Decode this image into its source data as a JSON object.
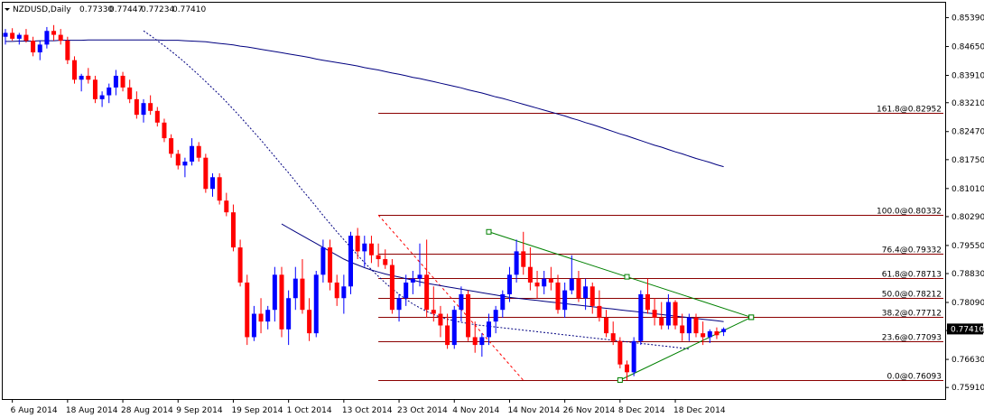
{
  "chart_data": {
    "type": "candlestick",
    "symbol_label": "NZDUSD,Daily",
    "ohlc_header": [
      "0.77330",
      "0.77447",
      "0.77234",
      "0.77410"
    ],
    "current_price_label": "0.77410",
    "ylim": [
      0.7566,
      0.8575
    ],
    "y_ticks": [
      "0.85390",
      "0.84650",
      "0.83910",
      "0.83210",
      "0.82470",
      "0.81750",
      "0.81010",
      "0.80290",
      "0.79550",
      "0.78830",
      "0.78090",
      "0.77370",
      "0.76630",
      "0.75910"
    ],
    "x_ticks": [
      {
        "i": 1,
        "label": "6 Aug 2014"
      },
      {
        "i": 9,
        "label": "18 Aug 2014"
      },
      {
        "i": 17,
        "label": "28 Aug 2014"
      },
      {
        "i": 25,
        "label": "9 Sep 2014"
      },
      {
        "i": 33,
        "label": "19 Sep 2014"
      },
      {
        "i": 41,
        "label": "1 Oct 2014"
      },
      {
        "i": 49,
        "label": "13 Oct 2014"
      },
      {
        "i": 57,
        "label": "23 Oct 2014"
      },
      {
        "i": 65,
        "label": "4 Nov 2014"
      },
      {
        "i": 73,
        "label": "14 Nov 2014"
      },
      {
        "i": 81,
        "label": "26 Nov 2014"
      },
      {
        "i": 89,
        "label": "8 Dec 2014"
      },
      {
        "i": 97,
        "label": "18 Dec 2014"
      }
    ],
    "candles": [
      [
        0.849,
        0.851,
        0.847,
        0.85
      ],
      [
        0.85,
        0.8512,
        0.848,
        0.8485
      ],
      [
        0.8485,
        0.85,
        0.847,
        0.8495
      ],
      [
        0.8495,
        0.851,
        0.8475,
        0.848
      ],
      [
        0.848,
        0.849,
        0.844,
        0.845
      ],
      [
        0.845,
        0.848,
        0.843,
        0.847
      ],
      [
        0.847,
        0.8515,
        0.846,
        0.8505
      ],
      [
        0.8505,
        0.852,
        0.848,
        0.8495
      ],
      [
        0.8495,
        0.851,
        0.847,
        0.848
      ],
      [
        0.848,
        0.849,
        0.842,
        0.843
      ],
      [
        0.843,
        0.844,
        0.837,
        0.838
      ],
      [
        0.838,
        0.8395,
        0.835,
        0.839
      ],
      [
        0.839,
        0.841,
        0.837,
        0.838
      ],
      [
        0.838,
        0.839,
        0.832,
        0.833
      ],
      [
        0.833,
        0.835,
        0.831,
        0.834
      ],
      [
        0.834,
        0.837,
        0.832,
        0.836
      ],
      [
        0.836,
        0.8405,
        0.834,
        0.839
      ],
      [
        0.839,
        0.84,
        0.835,
        0.836
      ],
      [
        0.836,
        0.838,
        0.832,
        0.833
      ],
      [
        0.833,
        0.835,
        0.828,
        0.829
      ],
      [
        0.829,
        0.833,
        0.827,
        0.832
      ],
      [
        0.832,
        0.834,
        0.829,
        0.83
      ],
      [
        0.83,
        0.831,
        0.826,
        0.827
      ],
      [
        0.827,
        0.828,
        0.822,
        0.823
      ],
      [
        0.823,
        0.824,
        0.818,
        0.819
      ],
      [
        0.819,
        0.82,
        0.815,
        0.816
      ],
      [
        0.816,
        0.818,
        0.813,
        0.817
      ],
      [
        0.817,
        0.823,
        0.816,
        0.821
      ],
      [
        0.821,
        0.822,
        0.817,
        0.818
      ],
      [
        0.818,
        0.819,
        0.809,
        0.81
      ],
      [
        0.81,
        0.814,
        0.808,
        0.813
      ],
      [
        0.813,
        0.814,
        0.806,
        0.807
      ],
      [
        0.807,
        0.809,
        0.803,
        0.804
      ],
      [
        0.804,
        0.806,
        0.794,
        0.795
      ],
      [
        0.795,
        0.797,
        0.785,
        0.786
      ],
      [
        0.786,
        0.788,
        0.77,
        0.772
      ],
      [
        0.772,
        0.78,
        0.771,
        0.778
      ],
      [
        0.778,
        0.782,
        0.773,
        0.776
      ],
      [
        0.776,
        0.78,
        0.774,
        0.779
      ],
      [
        0.779,
        0.79,
        0.776,
        0.788
      ],
      [
        0.788,
        0.79,
        0.772,
        0.774
      ],
      [
        0.774,
        0.784,
        0.77,
        0.782
      ],
      [
        0.782,
        0.79,
        0.779,
        0.787
      ],
      [
        0.787,
        0.792,
        0.778,
        0.779
      ],
      [
        0.779,
        0.782,
        0.771,
        0.773
      ],
      [
        0.773,
        0.789,
        0.772,
        0.788
      ],
      [
        0.788,
        0.797,
        0.786,
        0.795
      ],
      [
        0.795,
        0.797,
        0.784,
        0.786
      ],
      [
        0.786,
        0.788,
        0.78,
        0.782
      ],
      [
        0.782,
        0.788,
        0.778,
        0.785
      ],
      [
        0.785,
        0.799,
        0.783,
        0.798
      ],
      [
        0.798,
        0.8,
        0.792,
        0.794
      ],
      [
        0.794,
        0.798,
        0.79,
        0.796
      ],
      [
        0.796,
        0.798,
        0.791,
        0.793
      ],
      [
        0.793,
        0.796,
        0.79,
        0.792
      ],
      [
        0.792,
        0.7945,
        0.7895,
        0.7905
      ],
      [
        0.7905,
        0.792,
        0.778,
        0.779
      ],
      [
        0.779,
        0.783,
        0.776,
        0.782
      ],
      [
        0.782,
        0.788,
        0.78,
        0.786
      ],
      [
        0.786,
        0.789,
        0.783,
        0.787
      ],
      [
        0.787,
        0.796,
        0.785,
        0.788
      ],
      [
        0.788,
        0.797,
        0.777,
        0.779
      ],
      [
        0.779,
        0.785,
        0.776,
        0.778
      ],
      [
        0.778,
        0.78,
        0.772,
        0.775
      ],
      [
        0.775,
        0.778,
        0.769,
        0.77
      ],
      [
        0.77,
        0.78,
        0.769,
        0.779
      ],
      [
        0.779,
        0.785,
        0.776,
        0.783
      ],
      [
        0.783,
        0.784,
        0.771,
        0.772
      ],
      [
        0.772,
        0.776,
        0.768,
        0.77
      ],
      [
        0.77,
        0.773,
        0.767,
        0.772
      ],
      [
        0.772,
        0.778,
        0.77,
        0.776
      ],
      [
        0.776,
        0.78,
        0.773,
        0.779
      ],
      [
        0.779,
        0.784,
        0.777,
        0.783
      ],
      [
        0.783,
        0.79,
        0.781,
        0.788
      ],
      [
        0.788,
        0.797,
        0.786,
        0.794
      ],
      [
        0.794,
        0.799,
        0.788,
        0.79
      ],
      [
        0.79,
        0.795,
        0.784,
        0.786
      ],
      [
        0.786,
        0.789,
        0.782,
        0.785
      ],
      [
        0.785,
        0.789,
        0.783,
        0.787
      ],
      [
        0.787,
        0.79,
        0.784,
        0.786
      ],
      [
        0.786,
        0.788,
        0.778,
        0.779
      ],
      [
        0.779,
        0.786,
        0.777,
        0.784
      ],
      [
        0.784,
        0.793,
        0.783,
        0.787
      ],
      [
        0.787,
        0.789,
        0.781,
        0.782
      ],
      [
        0.782,
        0.787,
        0.779,
        0.785
      ],
      [
        0.785,
        0.786,
        0.778,
        0.78
      ],
      [
        0.78,
        0.784,
        0.776,
        0.777
      ],
      [
        0.777,
        0.779,
        0.772,
        0.773
      ],
      [
        0.773,
        0.776,
        0.77,
        0.771
      ],
      [
        0.771,
        0.772,
        0.764,
        0.765
      ],
      [
        0.765,
        0.766,
        0.761,
        0.763
      ],
      [
        0.763,
        0.772,
        0.762,
        0.771
      ],
      [
        0.771,
        0.784,
        0.77,
        0.783
      ],
      [
        0.783,
        0.787,
        0.778,
        0.779
      ],
      [
        0.779,
        0.782,
        0.775,
        0.777
      ],
      [
        0.777,
        0.781,
        0.774,
        0.775
      ],
      [
        0.775,
        0.783,
        0.774,
        0.781
      ],
      [
        0.781,
        0.7815,
        0.774,
        0.775
      ],
      [
        0.775,
        0.778,
        0.771,
        0.773
      ],
      [
        0.773,
        0.778,
        0.771,
        0.777
      ],
      [
        0.777,
        0.778,
        0.772,
        0.773
      ],
      [
        0.773,
        0.776,
        0.77,
        0.772
      ],
      [
        0.772,
        0.774,
        0.7705,
        0.7735
      ],
      [
        0.7735,
        0.7745,
        0.7715,
        0.7725
      ],
      [
        0.7733,
        0.7745,
        0.7723,
        0.7741
      ]
    ],
    "ma_slow": {
      "start": 0,
      "values": [
        0.8478,
        0.8478,
        0.8479,
        0.8479,
        0.8479,
        0.848,
        0.848,
        0.848,
        0.8481,
        0.8481,
        0.8481,
        0.8481,
        0.8482,
        0.8482,
        0.8482,
        0.8482,
        0.8482,
        0.8482,
        0.8482,
        0.8482,
        0.8482,
        0.8482,
        0.8482,
        0.8481,
        0.8481,
        0.8481,
        0.848,
        0.8479,
        0.8478,
        0.8477,
        0.8475,
        0.8473,
        0.8471,
        0.8469,
        0.8466,
        0.8464,
        0.8461,
        0.8458,
        0.8455,
        0.8452,
        0.8449,
        0.8446,
        0.8443,
        0.844,
        0.8437,
        0.8433,
        0.843,
        0.8427,
        0.8424,
        0.8421,
        0.8418,
        0.8415,
        0.8411,
        0.8408,
        0.8405,
        0.8401,
        0.8397,
        0.8394,
        0.839,
        0.8386,
        0.8383,
        0.8379,
        0.8375,
        0.8371,
        0.8367,
        0.8363,
        0.8359,
        0.8354,
        0.835,
        0.8346,
        0.8341,
        0.8336,
        0.8332,
        0.8327,
        0.8322,
        0.8317,
        0.8312,
        0.8307,
        0.8302,
        0.8297,
        0.8292,
        0.8287,
        0.8281,
        0.8276,
        0.827,
        0.8265,
        0.8259,
        0.8253,
        0.8247,
        0.8241,
        0.8236,
        0.823,
        0.8224,
        0.8218,
        0.8212,
        0.8207,
        0.8201,
        0.8195,
        0.819,
        0.8184,
        0.8178,
        0.8173,
        0.8168,
        0.8162,
        0.8157
      ]
    },
    "ma_medium": {
      "start": 20,
      "values": [
        0.8505,
        0.8493,
        0.848,
        0.8467,
        0.8453,
        0.8439,
        0.8424,
        0.8408,
        0.8392,
        0.8375,
        0.8358,
        0.8341,
        0.8323,
        0.8304,
        0.8285,
        0.8265,
        0.8245,
        0.8225,
        0.8204,
        0.8183,
        0.8162,
        0.8141,
        0.8119,
        0.8097,
        0.8076,
        0.8054,
        0.8032,
        0.8011,
        0.799,
        0.797,
        0.795,
        0.793,
        0.7911,
        0.7893,
        0.7876,
        0.7859,
        0.7844,
        0.783,
        0.7817,
        0.7805,
        0.7795,
        0.7786,
        0.7778,
        0.7771,
        0.7766,
        0.7762,
        0.7758,
        0.7755,
        0.7752,
        0.775,
        0.7748,
        0.7746,
        0.7744,
        0.7742,
        0.774,
        0.7738,
        0.7736,
        0.7734,
        0.7732,
        0.773,
        0.7728,
        0.7726,
        0.7724,
        0.7722,
        0.772,
        0.7718,
        0.7716,
        0.7714,
        0.7712,
        0.771,
        0.7708,
        0.7706,
        0.7704,
        0.7702,
        0.77,
        0.7698,
        0.7696,
        0.7694,
        0.7692,
        0.769
      ]
    },
    "ma_fast": {
      "start": 40,
      "values": [
        0.801,
        0.8,
        0.799,
        0.798,
        0.797,
        0.796,
        0.795,
        0.794,
        0.793,
        0.792,
        0.7912,
        0.7905,
        0.7898,
        0.7892,
        0.7887,
        0.7882,
        0.7878,
        0.7874,
        0.787,
        0.7866,
        0.7862,
        0.7858,
        0.7855,
        0.7852,
        0.7849,
        0.7846,
        0.7843,
        0.784,
        0.7837,
        0.7834,
        0.7831,
        0.7828,
        0.7825,
        0.7822,
        0.782,
        0.7818,
        0.7816,
        0.7814,
        0.7812,
        0.781,
        0.7808,
        0.7806,
        0.7804,
        0.7802,
        0.78,
        0.7798,
        0.7796,
        0.7794,
        0.7792,
        0.779,
        0.7788,
        0.7786,
        0.7784,
        0.7782,
        0.778,
        0.7778,
        0.7776,
        0.7774,
        0.7772,
        0.777,
        0.7768,
        0.7766,
        0.7764,
        0.7762,
        0.776
      ]
    },
    "fibonacci": {
      "start_index": 54,
      "end_index": 165,
      "levels": [
        {
          "label": "161.8@0.82952",
          "price": 0.82952
        },
        {
          "label": "100.0@0.80332",
          "price": 0.80332
        },
        {
          "label": "76.4@0.79332",
          "price": 0.79332
        },
        {
          "label": "61.8@0.78713",
          "price": 0.78713
        },
        {
          "label": "50.0@0.78212",
          "price": 0.78212
        },
        {
          "label": "38.2@0.77712",
          "price": 0.77712
        },
        {
          "label": "23.6@0.77093",
          "price": 0.77093
        },
        {
          "label": "0.0@0.76093",
          "price": 0.76093
        }
      ],
      "trend_line": {
        "from": [
          54,
          0.80332
        ],
        "to": [
          75,
          0.76093
        ]
      }
    },
    "triangle": {
      "upper": {
        "from": [
          70,
          0.799
        ],
        "to": [
          108,
          0.7771
        ]
      },
      "lower": {
        "from": [
          89,
          0.761
        ],
        "to": [
          108,
          0.7771
        ]
      }
    }
  }
}
